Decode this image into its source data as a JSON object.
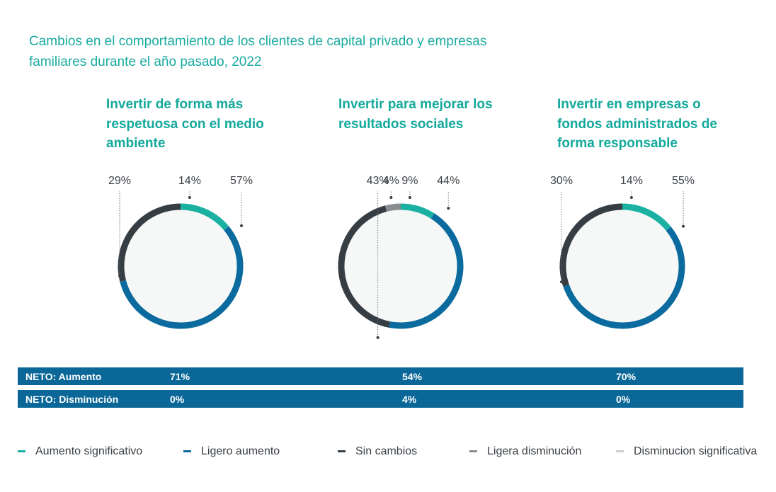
{
  "title": "Cambios en el comportamiento de los clientes de capital privado y empresas familiares durante el año pasado, 2022",
  "colors": {
    "aumento_significativo": "#1ab1a3",
    "ligero_aumento": "#0b6a9e",
    "sin_cambios": "#363e44",
    "ligera_disminucion": "#8a8d90",
    "disminucion_significativa": "#cdd0d2",
    "donut_center": "#f6f7f7",
    "title": "#1aaba0",
    "net_bar": "#0a6797"
  },
  "chart_data": [
    {
      "type": "donut",
      "title": "Invertir de forma más respetuosa con el medio ambiente",
      "segments": [
        {
          "key": "aumento_significativo",
          "value": 14,
          "label": "14%"
        },
        {
          "key": "ligero_aumento",
          "value": 57,
          "label": "57%"
        },
        {
          "key": "sin_cambios",
          "value": 29,
          "label": "29%"
        }
      ],
      "net_increase": "71%",
      "net_decrease": "0%"
    },
    {
      "type": "donut",
      "title": "Invertir para mejorar los resultados sociales",
      "segments": [
        {
          "key": "aumento_significativo",
          "value": 9,
          "label": "9%"
        },
        {
          "key": "ligero_aumento",
          "value": 44,
          "label": "44%"
        },
        {
          "key": "sin_cambios",
          "value": 43,
          "label": "43%"
        },
        {
          "key": "ligera_disminucion",
          "value": 4,
          "label": "4%"
        }
      ],
      "net_increase": "54%",
      "net_decrease": "4%"
    },
    {
      "type": "donut",
      "title": "Invertir en empresas o fondos administrados de forma responsable",
      "segments": [
        {
          "key": "aumento_significativo",
          "value": 14,
          "label": "14%"
        },
        {
          "key": "ligero_aumento",
          "value": 55,
          "label": "55%"
        },
        {
          "key": "sin_cambios",
          "value": 30,
          "label": "30%"
        }
      ],
      "net_increase": "70%",
      "net_decrease": "0%"
    }
  ],
  "net": {
    "increase_label": "NETO: Aumento",
    "decrease_label": "NETO: Disminución"
  },
  "legend": [
    {
      "key": "aumento_significativo",
      "label": "Aumento significativo"
    },
    {
      "key": "ligero_aumento",
      "label": "Ligero aumento"
    },
    {
      "key": "sin_cambios",
      "label": "Sin cambios"
    },
    {
      "key": "ligera_disminucion",
      "label": "Ligera disminución"
    },
    {
      "key": "disminucion_significativa",
      "label": "Disminucion significativa"
    }
  ]
}
